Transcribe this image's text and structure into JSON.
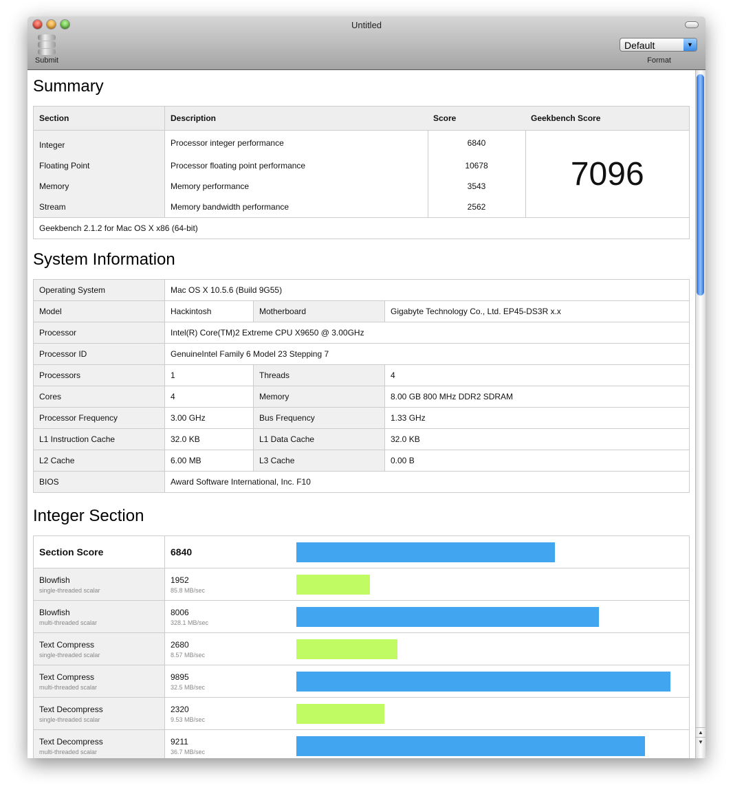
{
  "window": {
    "title": "Untitled"
  },
  "toolbar": {
    "submit_label": "Submit",
    "format_label": "Format",
    "format_value": "Default"
  },
  "summary": {
    "heading": "Summary",
    "headers": [
      "Section",
      "Description",
      "Score",
      "Geekbench Score"
    ],
    "rows": [
      {
        "section": "Integer",
        "description": "Processor integer performance",
        "score": "6840"
      },
      {
        "section": "Floating Point",
        "description": "Processor floating point performance",
        "score": "10678"
      },
      {
        "section": "Memory",
        "description": "Memory performance",
        "score": "3543"
      },
      {
        "section": "Stream",
        "description": "Memory bandwidth performance",
        "score": "2562"
      }
    ],
    "geekbench_score": "7096",
    "footer": "Geekbench 2.1.2 for Mac OS X x86 (64-bit)"
  },
  "system": {
    "heading": "System Information",
    "os_label": "Operating System",
    "os": "Mac OS X 10.5.6 (Build 9G55)",
    "model_label": "Model",
    "model": "Hackintosh",
    "mb_label": "Motherboard",
    "mb": "Gigabyte Technology Co., Ltd. EP45-DS3R x.x",
    "proc_label": "Processor",
    "proc": "Intel(R) Core(TM)2 Extreme CPU X9650 @ 3.00GHz",
    "pid_label": "Processor ID",
    "pid": "GenuineIntel Family 6 Model 23 Stepping 7",
    "pair_rows": [
      [
        "Processors",
        "1",
        "Threads",
        "4"
      ],
      [
        "Cores",
        "4",
        "Memory",
        "8.00 GB  800 MHz DDR2 SDRAM"
      ],
      [
        "Processor Frequency",
        "3.00 GHz",
        "Bus Frequency",
        "1.33 GHz"
      ],
      [
        "L1 Instruction Cache",
        "32.0 KB",
        "L1 Data Cache",
        "32.0 KB"
      ],
      [
        "L2 Cache",
        "6.00 MB",
        "L3 Cache",
        "0.00 B"
      ]
    ],
    "bios_label": "BIOS",
    "bios": "Award Software International, Inc. F10"
  },
  "integer": {
    "heading": "Integer Section",
    "section_label": "Section Score",
    "section_score": "6840",
    "section_value": 6840,
    "bar_max": 10000,
    "colors": {
      "multi": "#42a5f0",
      "single": "#c1fb64"
    },
    "tests": [
      {
        "name": "Blowfish",
        "kind": "single-threaded scalar",
        "score": "1952",
        "rate": "85.8 MB/sec",
        "value": 1952,
        "type": "single"
      },
      {
        "name": "Blowfish",
        "kind": "multi-threaded scalar",
        "score": "8006",
        "rate": "328.1 MB/sec",
        "value": 8006,
        "type": "multi"
      },
      {
        "name": "Text Compress",
        "kind": "single-threaded scalar",
        "score": "2680",
        "rate": "8.57 MB/sec",
        "value": 2680,
        "type": "single"
      },
      {
        "name": "Text Compress",
        "kind": "multi-threaded scalar",
        "score": "9895",
        "rate": "32.5 MB/sec",
        "value": 9895,
        "type": "multi"
      },
      {
        "name": "Text Decompress",
        "kind": "single-threaded scalar",
        "score": "2320",
        "rate": "9.53 MB/sec",
        "value": 2320,
        "type": "single"
      },
      {
        "name": "Text Decompress",
        "kind": "multi-threaded scalar",
        "score": "9211",
        "rate": "36.7 MB/sec",
        "value": 9211,
        "type": "multi"
      }
    ]
  }
}
